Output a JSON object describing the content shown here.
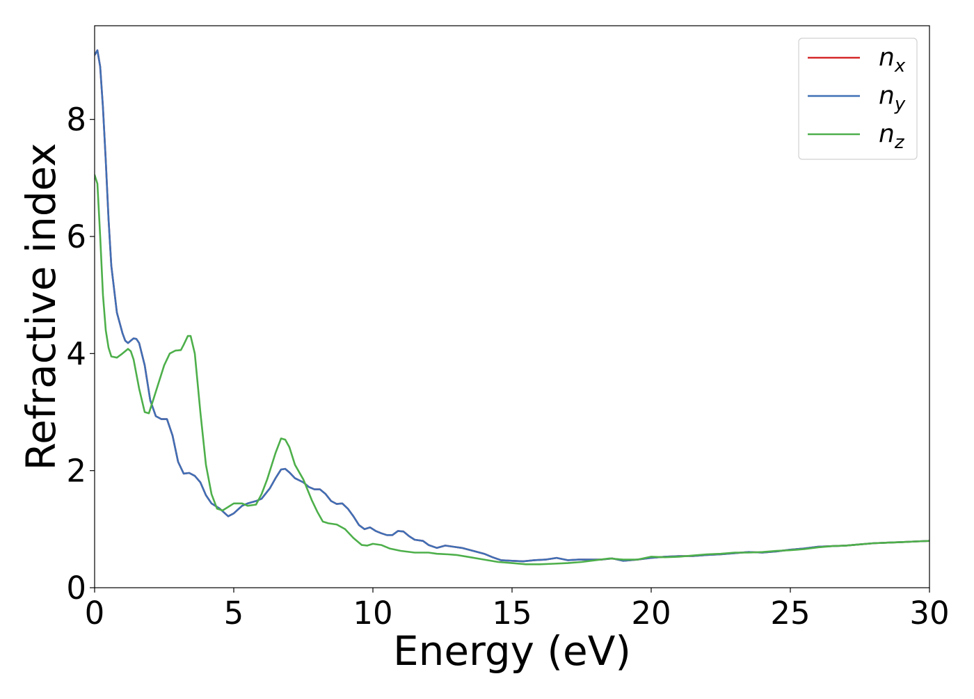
{
  "chart_data": {
    "type": "line",
    "title": "",
    "xlabel": "Energy (eV)",
    "ylabel": "Refractive index",
    "xlim": [
      0,
      30
    ],
    "ylim": [
      0,
      9.6
    ],
    "xticks": [
      0,
      5,
      10,
      15,
      20,
      25,
      30
    ],
    "yticks": [
      0,
      2,
      4,
      6,
      8
    ],
    "xtick_labels": [
      "0",
      "5",
      "10",
      "15",
      "20",
      "25",
      "30"
    ],
    "ytick_labels": [
      "0",
      "2",
      "4",
      "6",
      "8"
    ],
    "grid": false,
    "legend": {
      "position": "top-right",
      "entries": [
        {
          "base": "n",
          "sub": "x",
          "color": "#d62728"
        },
        {
          "base": "n",
          "sub": "y",
          "color": "#3f6fb5"
        },
        {
          "base": "n",
          "sub": "z",
          "color": "#4daf4a"
        }
      ]
    },
    "series": [
      {
        "name": "n_x",
        "color": "#d62728",
        "points": [
          [
            0,
            9.1
          ],
          [
            0.1,
            9.18
          ],
          [
            0.2,
            8.9
          ],
          [
            0.3,
            8.2
          ],
          [
            0.4,
            7.3
          ],
          [
            0.5,
            6.3
          ],
          [
            0.6,
            5.5
          ],
          [
            0.8,
            4.7
          ],
          [
            1.0,
            4.35
          ],
          [
            1.1,
            4.22
          ],
          [
            1.2,
            4.18
          ],
          [
            1.3,
            4.22
          ],
          [
            1.4,
            4.26
          ],
          [
            1.5,
            4.25
          ],
          [
            1.6,
            4.18
          ],
          [
            1.8,
            3.8
          ],
          [
            2.0,
            3.2
          ],
          [
            2.2,
            2.93
          ],
          [
            2.4,
            2.88
          ],
          [
            2.6,
            2.88
          ],
          [
            2.8,
            2.6
          ],
          [
            3.0,
            2.15
          ],
          [
            3.2,
            1.95
          ],
          [
            3.4,
            1.96
          ],
          [
            3.6,
            1.91
          ],
          [
            3.8,
            1.8
          ],
          [
            4.0,
            1.58
          ],
          [
            4.2,
            1.44
          ],
          [
            4.5,
            1.35
          ],
          [
            4.8,
            1.22
          ],
          [
            5.0,
            1.27
          ],
          [
            5.3,
            1.4
          ],
          [
            5.5,
            1.44
          ],
          [
            5.8,
            1.48
          ],
          [
            6.0,
            1.52
          ],
          [
            6.3,
            1.7
          ],
          [
            6.5,
            1.87
          ],
          [
            6.7,
            2.02
          ],
          [
            6.85,
            2.03
          ],
          [
            7.0,
            1.97
          ],
          [
            7.2,
            1.87
          ],
          [
            7.5,
            1.8
          ],
          [
            7.7,
            1.72
          ],
          [
            7.9,
            1.68
          ],
          [
            8.1,
            1.68
          ],
          [
            8.3,
            1.6
          ],
          [
            8.5,
            1.48
          ],
          [
            8.7,
            1.43
          ],
          [
            8.9,
            1.44
          ],
          [
            9.1,
            1.35
          ],
          [
            9.3,
            1.22
          ],
          [
            9.5,
            1.07
          ],
          [
            9.7,
            1.0
          ],
          [
            9.9,
            1.03
          ],
          [
            10.1,
            0.97
          ],
          [
            10.3,
            0.93
          ],
          [
            10.5,
            0.9
          ],
          [
            10.7,
            0.9
          ],
          [
            10.9,
            0.97
          ],
          [
            11.1,
            0.96
          ],
          [
            11.3,
            0.88
          ],
          [
            11.5,
            0.82
          ],
          [
            11.8,
            0.8
          ],
          [
            12.0,
            0.73
          ],
          [
            12.3,
            0.68
          ],
          [
            12.6,
            0.72
          ],
          [
            12.9,
            0.7
          ],
          [
            13.2,
            0.68
          ],
          [
            13.6,
            0.63
          ],
          [
            14.0,
            0.58
          ],
          [
            14.3,
            0.52
          ],
          [
            14.6,
            0.47
          ],
          [
            15.0,
            0.46
          ],
          [
            15.4,
            0.45
          ],
          [
            15.8,
            0.47
          ],
          [
            16.2,
            0.48
          ],
          [
            16.6,
            0.51
          ],
          [
            17.0,
            0.47
          ],
          [
            17.4,
            0.48
          ],
          [
            17.8,
            0.48
          ],
          [
            18.2,
            0.48
          ],
          [
            18.6,
            0.5
          ],
          [
            19.0,
            0.46
          ],
          [
            19.5,
            0.48
          ],
          [
            20.0,
            0.51
          ],
          [
            20.5,
            0.53
          ],
          [
            21.0,
            0.54
          ],
          [
            21.5,
            0.54
          ],
          [
            22.0,
            0.56
          ],
          [
            22.5,
            0.57
          ],
          [
            23.0,
            0.59
          ],
          [
            23.5,
            0.61
          ],
          [
            24.0,
            0.6
          ],
          [
            24.5,
            0.62
          ],
          [
            25.0,
            0.65
          ],
          [
            25.5,
            0.67
          ],
          [
            26.0,
            0.7
          ],
          [
            26.5,
            0.71
          ],
          [
            27.0,
            0.72
          ],
          [
            27.5,
            0.74
          ],
          [
            28.0,
            0.76
          ],
          [
            28.5,
            0.77
          ],
          [
            29.0,
            0.78
          ],
          [
            29.5,
            0.79
          ],
          [
            30.0,
            0.8
          ]
        ]
      },
      {
        "name": "n_y",
        "color": "#3f6fb5",
        "points": [
          [
            0,
            9.1
          ],
          [
            0.1,
            9.18
          ],
          [
            0.2,
            8.9
          ],
          [
            0.3,
            8.2
          ],
          [
            0.4,
            7.3
          ],
          [
            0.5,
            6.3
          ],
          [
            0.6,
            5.5
          ],
          [
            0.8,
            4.7
          ],
          [
            1.0,
            4.35
          ],
          [
            1.1,
            4.22
          ],
          [
            1.2,
            4.18
          ],
          [
            1.3,
            4.22
          ],
          [
            1.4,
            4.26
          ],
          [
            1.5,
            4.25
          ],
          [
            1.6,
            4.18
          ],
          [
            1.8,
            3.8
          ],
          [
            2.0,
            3.2
          ],
          [
            2.2,
            2.93
          ],
          [
            2.4,
            2.88
          ],
          [
            2.6,
            2.88
          ],
          [
            2.8,
            2.6
          ],
          [
            3.0,
            2.15
          ],
          [
            3.2,
            1.95
          ],
          [
            3.4,
            1.96
          ],
          [
            3.6,
            1.91
          ],
          [
            3.8,
            1.8
          ],
          [
            4.0,
            1.58
          ],
          [
            4.2,
            1.44
          ],
          [
            4.5,
            1.35
          ],
          [
            4.8,
            1.22
          ],
          [
            5.0,
            1.27
          ],
          [
            5.3,
            1.4
          ],
          [
            5.5,
            1.44
          ],
          [
            5.8,
            1.48
          ],
          [
            6.0,
            1.52
          ],
          [
            6.3,
            1.7
          ],
          [
            6.5,
            1.87
          ],
          [
            6.7,
            2.02
          ],
          [
            6.85,
            2.03
          ],
          [
            7.0,
            1.97
          ],
          [
            7.2,
            1.87
          ],
          [
            7.5,
            1.8
          ],
          [
            7.7,
            1.72
          ],
          [
            7.9,
            1.68
          ],
          [
            8.1,
            1.68
          ],
          [
            8.3,
            1.6
          ],
          [
            8.5,
            1.48
          ],
          [
            8.7,
            1.43
          ],
          [
            8.9,
            1.44
          ],
          [
            9.1,
            1.35
          ],
          [
            9.3,
            1.22
          ],
          [
            9.5,
            1.07
          ],
          [
            9.7,
            1.0
          ],
          [
            9.9,
            1.03
          ],
          [
            10.1,
            0.97
          ],
          [
            10.3,
            0.93
          ],
          [
            10.5,
            0.9
          ],
          [
            10.7,
            0.9
          ],
          [
            10.9,
            0.97
          ],
          [
            11.1,
            0.96
          ],
          [
            11.3,
            0.88
          ],
          [
            11.5,
            0.82
          ],
          [
            11.8,
            0.8
          ],
          [
            12.0,
            0.73
          ],
          [
            12.3,
            0.68
          ],
          [
            12.6,
            0.72
          ],
          [
            12.9,
            0.7
          ],
          [
            13.2,
            0.68
          ],
          [
            13.6,
            0.63
          ],
          [
            14.0,
            0.58
          ],
          [
            14.3,
            0.52
          ],
          [
            14.6,
            0.47
          ],
          [
            15.0,
            0.46
          ],
          [
            15.4,
            0.45
          ],
          [
            15.8,
            0.47
          ],
          [
            16.2,
            0.48
          ],
          [
            16.6,
            0.51
          ],
          [
            17.0,
            0.47
          ],
          [
            17.4,
            0.48
          ],
          [
            17.8,
            0.48
          ],
          [
            18.2,
            0.48
          ],
          [
            18.6,
            0.5
          ],
          [
            19.0,
            0.46
          ],
          [
            19.5,
            0.48
          ],
          [
            20.0,
            0.51
          ],
          [
            20.5,
            0.53
          ],
          [
            21.0,
            0.54
          ],
          [
            21.5,
            0.54
          ],
          [
            22.0,
            0.56
          ],
          [
            22.5,
            0.57
          ],
          [
            23.0,
            0.59
          ],
          [
            23.5,
            0.61
          ],
          [
            24.0,
            0.6
          ],
          [
            24.5,
            0.62
          ],
          [
            25.0,
            0.65
          ],
          [
            25.5,
            0.67
          ],
          [
            26.0,
            0.7
          ],
          [
            26.5,
            0.71
          ],
          [
            27.0,
            0.72
          ],
          [
            27.5,
            0.74
          ],
          [
            28.0,
            0.76
          ],
          [
            28.5,
            0.77
          ],
          [
            29.0,
            0.78
          ],
          [
            29.5,
            0.79
          ],
          [
            30.0,
            0.8
          ]
        ]
      },
      {
        "name": "n_z",
        "color": "#4daf4a",
        "points": [
          [
            0,
            7.05
          ],
          [
            0.1,
            6.9
          ],
          [
            0.2,
            6.0
          ],
          [
            0.3,
            5.0
          ],
          [
            0.4,
            4.4
          ],
          [
            0.5,
            4.1
          ],
          [
            0.6,
            3.95
          ],
          [
            0.8,
            3.93
          ],
          [
            1.0,
            4.0
          ],
          [
            1.2,
            4.08
          ],
          [
            1.3,
            4.04
          ],
          [
            1.4,
            3.9
          ],
          [
            1.6,
            3.4
          ],
          [
            1.8,
            3.0
          ],
          [
            1.95,
            2.98
          ],
          [
            2.1,
            3.2
          ],
          [
            2.3,
            3.5
          ],
          [
            2.5,
            3.8
          ],
          [
            2.7,
            4.0
          ],
          [
            2.9,
            4.05
          ],
          [
            3.1,
            4.06
          ],
          [
            3.2,
            4.15
          ],
          [
            3.35,
            4.3
          ],
          [
            3.45,
            4.3
          ],
          [
            3.6,
            4.0
          ],
          [
            3.8,
            3.0
          ],
          [
            4.0,
            2.1
          ],
          [
            4.2,
            1.6
          ],
          [
            4.4,
            1.35
          ],
          [
            4.6,
            1.32
          ],
          [
            4.8,
            1.38
          ],
          [
            5.0,
            1.44
          ],
          [
            5.3,
            1.44
          ],
          [
            5.5,
            1.4
          ],
          [
            5.8,
            1.42
          ],
          [
            6.0,
            1.6
          ],
          [
            6.2,
            1.85
          ],
          [
            6.5,
            2.3
          ],
          [
            6.7,
            2.55
          ],
          [
            6.85,
            2.53
          ],
          [
            7.0,
            2.4
          ],
          [
            7.2,
            2.1
          ],
          [
            7.5,
            1.85
          ],
          [
            7.8,
            1.5
          ],
          [
            8.0,
            1.3
          ],
          [
            8.2,
            1.13
          ],
          [
            8.4,
            1.1
          ],
          [
            8.7,
            1.08
          ],
          [
            9.0,
            1.0
          ],
          [
            9.3,
            0.85
          ],
          [
            9.6,
            0.73
          ],
          [
            9.8,
            0.72
          ],
          [
            10.0,
            0.75
          ],
          [
            10.3,
            0.73
          ],
          [
            10.6,
            0.67
          ],
          [
            11.0,
            0.63
          ],
          [
            11.5,
            0.6
          ],
          [
            12.0,
            0.6
          ],
          [
            12.3,
            0.58
          ],
          [
            12.7,
            0.57
          ],
          [
            13.0,
            0.56
          ],
          [
            13.5,
            0.52
          ],
          [
            14.0,
            0.48
          ],
          [
            14.5,
            0.44
          ],
          [
            15.0,
            0.42
          ],
          [
            15.5,
            0.4
          ],
          [
            16.0,
            0.4
          ],
          [
            16.5,
            0.41
          ],
          [
            17.0,
            0.42
          ],
          [
            17.5,
            0.44
          ],
          [
            18.0,
            0.47
          ],
          [
            18.5,
            0.5
          ],
          [
            19.0,
            0.48
          ],
          [
            19.5,
            0.48
          ],
          [
            20.0,
            0.53
          ],
          [
            20.5,
            0.52
          ],
          [
            21.0,
            0.53
          ],
          [
            21.5,
            0.55
          ],
          [
            22.0,
            0.57
          ],
          [
            22.5,
            0.58
          ],
          [
            23.0,
            0.6
          ],
          [
            23.5,
            0.6
          ],
          [
            24.0,
            0.61
          ],
          [
            24.5,
            0.63
          ],
          [
            25.0,
            0.64
          ],
          [
            25.5,
            0.66
          ],
          [
            26.0,
            0.69
          ],
          [
            26.5,
            0.71
          ],
          [
            27.0,
            0.72
          ],
          [
            27.5,
            0.74
          ],
          [
            28.0,
            0.76
          ],
          [
            28.5,
            0.77
          ],
          [
            29.0,
            0.78
          ],
          [
            29.5,
            0.79
          ],
          [
            30.0,
            0.8
          ]
        ]
      }
    ]
  }
}
